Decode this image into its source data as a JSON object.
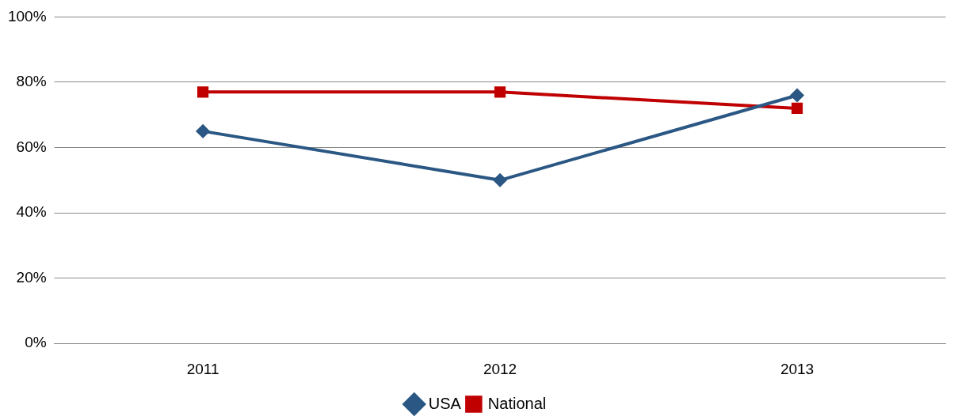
{
  "chart_data": {
    "type": "line",
    "categories": [
      "2011",
      "2012",
      "2013"
    ],
    "series": [
      {
        "name": "USA",
        "color": "#2a5783",
        "marker": "diamond",
        "values": [
          65,
          50,
          76
        ]
      },
      {
        "name": "National",
        "color": "#c00000",
        "marker": "square",
        "values": [
          77,
          77,
          72
        ]
      }
    ],
    "ylim": [
      0,
      100
    ],
    "yticks": [
      {
        "value": 0,
        "label": "0%"
      },
      {
        "value": 20,
        "label": "20%"
      },
      {
        "value": 40,
        "label": "40%"
      },
      {
        "value": 60,
        "label": "60%"
      },
      {
        "value": 80,
        "label": "80%"
      },
      {
        "value": 100,
        "label": "100%"
      }
    ],
    "grid": "y",
    "legend": "bottom"
  }
}
